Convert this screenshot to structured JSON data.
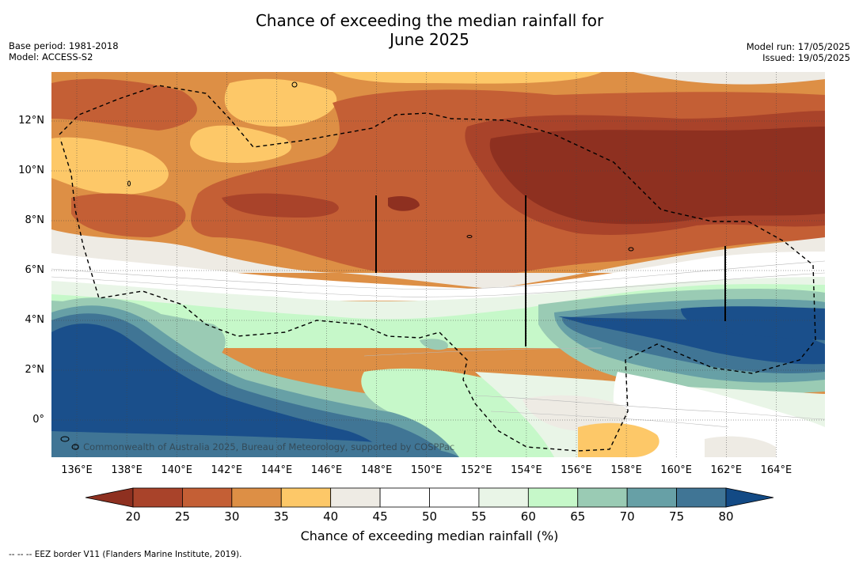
{
  "title_line1": "Chance of exceeding the median rainfall for",
  "title_line2": "June 2025",
  "base_period": "Base period: 1981-2018",
  "model": "Model: ACCESS-S2",
  "model_run": "Model run: 17/05/2025",
  "issued": "Issued: 19/05/2025",
  "copyright": "© Commonwealth of Australia 2025, Bureau of Meteorology, supported by COSPPac",
  "footnote": "--  --  -- EEZ border V11 (Flanders Marine Institute, 2019).",
  "colorbar": {
    "label": "Chance of exceeding median rainfall (%)",
    "ticks": [
      "20",
      "25",
      "30",
      "35",
      "40",
      "45",
      "50",
      "55",
      "60",
      "65",
      "70",
      "75",
      "80"
    ],
    "colors": [
      "#a9432a",
      "#c45f35",
      "#dd8f45",
      "#fdc868",
      "#eeebe4",
      "#ffffff",
      "#ffffff",
      "#e9f5e7",
      "#c6f8c9",
      "#9acbb4",
      "#67a0a6",
      "#407595",
      "#1a4f8b"
    ],
    "under_color": "#8e3020",
    "over_color": "#134a85"
  },
  "axes": {
    "lat_labels": [
      "12°N",
      "10°N",
      "8°N",
      "6°N",
      "4°N",
      "2°N",
      "0°"
    ],
    "lon_labels": [
      "136°E",
      "138°E",
      "140°E",
      "142°E",
      "144°E",
      "146°E",
      "148°E",
      "150°E",
      "152°E",
      "154°E",
      "156°E",
      "158°E",
      "160°E",
      "162°E",
      "164°E"
    ]
  }
}
